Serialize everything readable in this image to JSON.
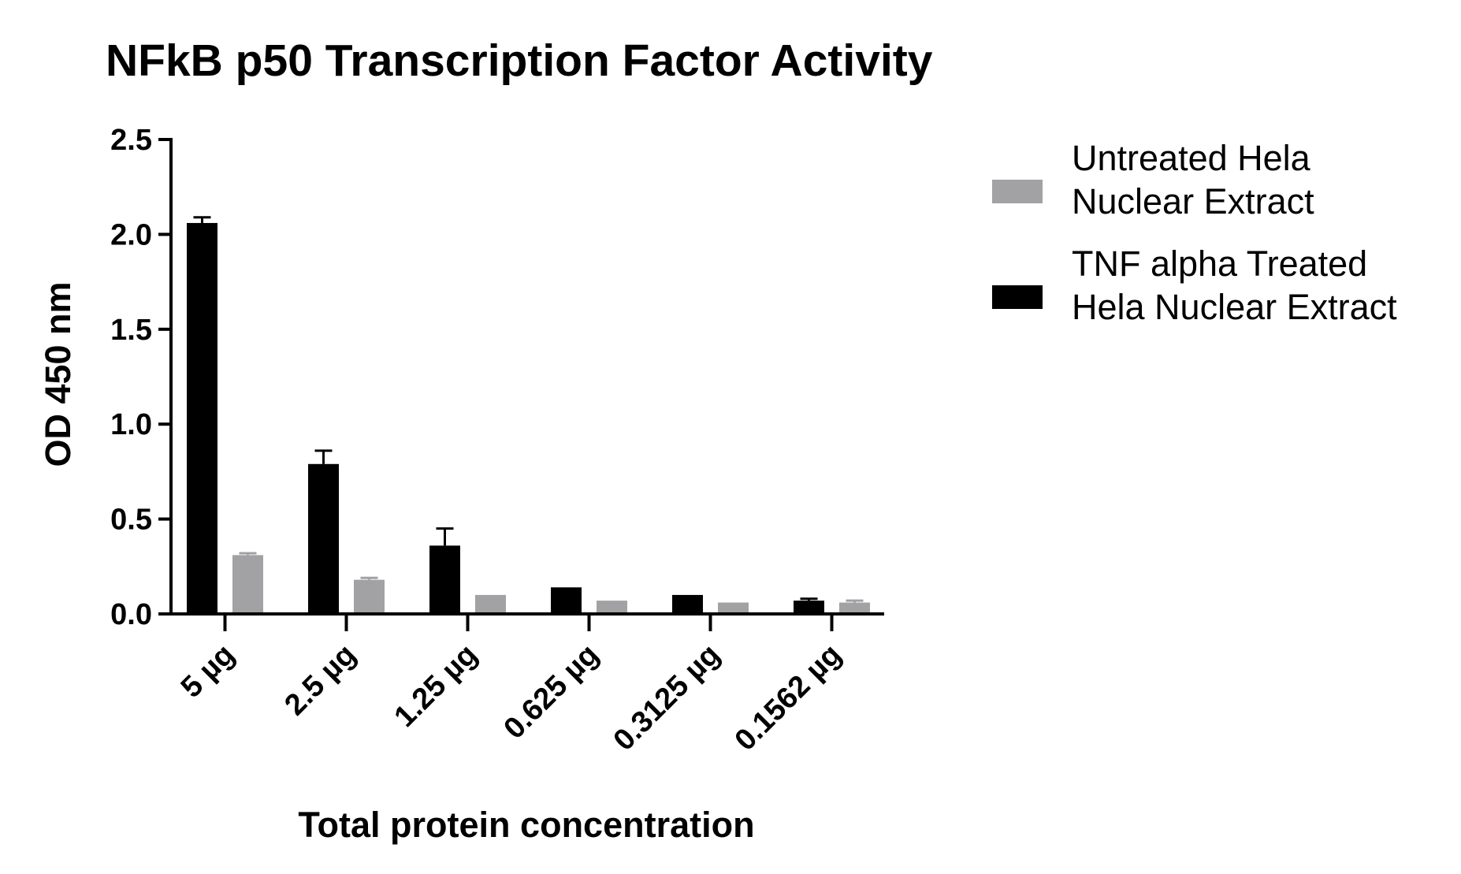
{
  "chart_data": {
    "type": "bar",
    "title": "NFkB p50 Transcription Factor Activity",
    "xlabel": "Total protein concentration",
    "ylabel": "OD 450 nm",
    "categories": [
      "5 µg",
      "2.5 µg",
      "1.25 µg",
      "0.625 µg",
      "0.3125 µg",
      "0.1562 µg"
    ],
    "ylim": [
      0,
      2.5
    ],
    "yticks": [
      "0.0",
      "0.5",
      "1.0",
      "1.5",
      "2.0",
      "2.5"
    ],
    "grid": false,
    "legend_position": "right",
    "series": [
      {
        "name": "TNF alpha Treated Hela Nuclear Extract",
        "legend_lines": [
          "TNF alpha Treated",
          "Hela Nuclear Extract"
        ],
        "color": "#000000",
        "values": [
          2.06,
          0.79,
          0.36,
          0.14,
          0.1,
          0.07
        ],
        "errors": [
          0.03,
          0.07,
          0.09,
          0.0,
          0.0,
          0.01
        ]
      },
      {
        "name": "Untreated Hela Nuclear Extract",
        "legend_lines": [
          "Untreated Hela",
          "Nuclear Extract"
        ],
        "color": "#a2a2a4",
        "values": [
          0.31,
          0.18,
          0.1,
          0.07,
          0.06,
          0.06
        ],
        "errors": [
          0.01,
          0.01,
          0.0,
          0.0,
          0.0,
          0.01
        ]
      }
    ]
  }
}
